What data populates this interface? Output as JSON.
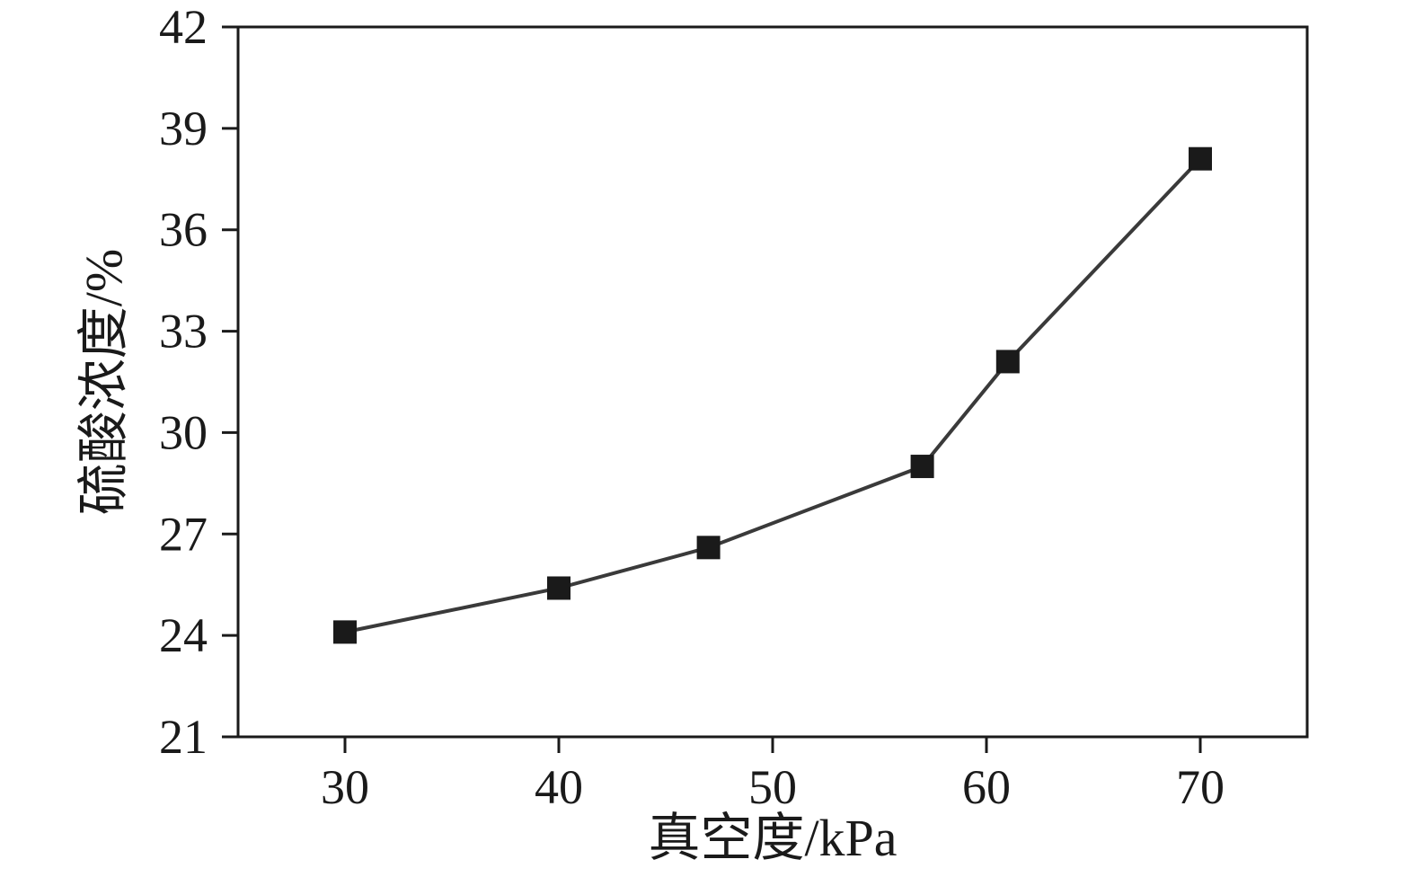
{
  "chart_data": {
    "type": "line",
    "title": "",
    "xlabel": "真空度/kPa",
    "ylabel": "硫酸浓度/%",
    "x": [
      30,
      40,
      47,
      57,
      61,
      70
    ],
    "y": [
      24.1,
      25.4,
      26.6,
      29.0,
      32.1,
      38.1
    ],
    "xlim": [
      25,
      75
    ],
    "ylim": [
      21,
      42
    ],
    "x_ticks": [
      30,
      40,
      50,
      60,
      70
    ],
    "y_ticks": [
      21,
      24,
      27,
      30,
      33,
      36,
      39,
      42
    ],
    "grid": false,
    "legend": "none",
    "marker": "square",
    "marker_size": 26,
    "line_color": "#3a3a3a",
    "marker_color": "#1a1a1a",
    "axis_color": "#1a1a1a",
    "background_color": "#ffffff"
  }
}
